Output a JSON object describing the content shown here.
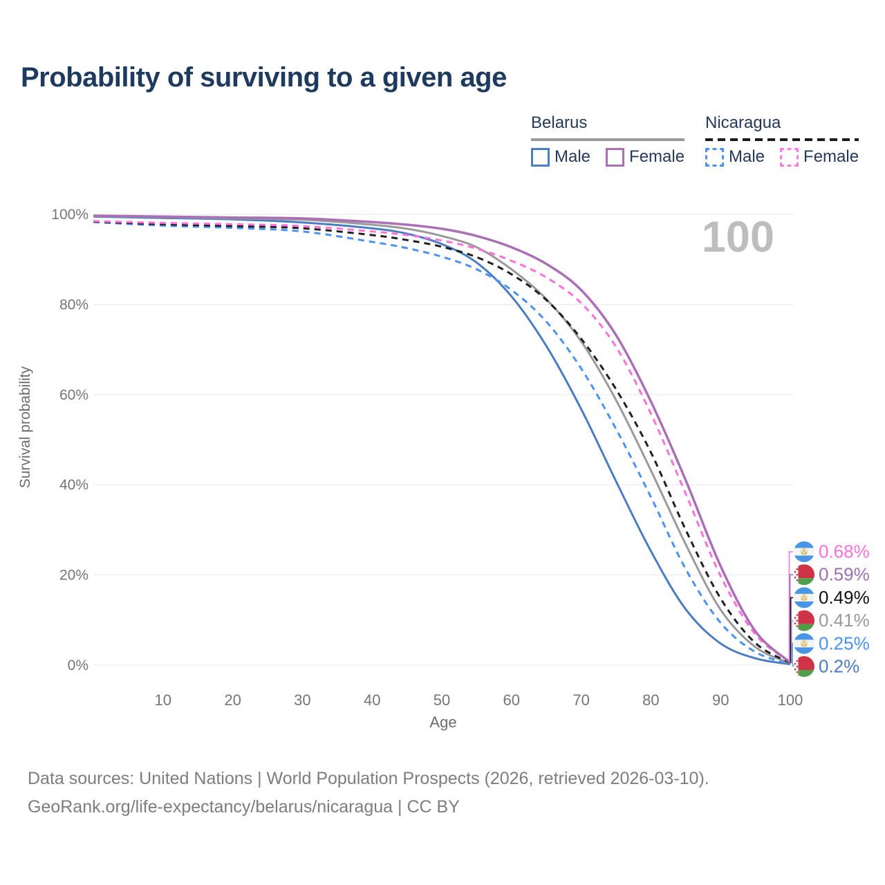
{
  "title": "Probability of surviving to a given age",
  "legend": {
    "belarus": {
      "label": "Belarus",
      "male_label": "Male",
      "female_label": "Female"
    },
    "nicaragua": {
      "label": "Nicaragua",
      "male_label": "Male",
      "female_label": "Female"
    }
  },
  "chart_data": {
    "type": "line",
    "title": "Probability of surviving to a given age",
    "xlabel": "Age",
    "ylabel": "Survival probability",
    "xlim": [
      0,
      100
    ],
    "ylim": [
      0,
      100
    ],
    "grid": "horizontal",
    "legend_position": "top-right",
    "watermark": "100",
    "x_tick_values": [
      10,
      20,
      30,
      40,
      50,
      60,
      70,
      80,
      90,
      100
    ],
    "x_tick_labels": [
      "10",
      "20",
      "30",
      "40",
      "50",
      "60",
      "70",
      "80",
      "90",
      "100"
    ],
    "y_tick_values": [
      0,
      20,
      40,
      60,
      80,
      100
    ],
    "y_tick_labels": [
      "0%",
      "20%",
      "40%",
      "60%",
      "80%",
      "100%"
    ],
    "ages": [
      0,
      10,
      20,
      30,
      40,
      45,
      50,
      55,
      60,
      65,
      70,
      75,
      80,
      85,
      90,
      95,
      100
    ],
    "series": [
      {
        "name": "Belarus male",
        "country": "belarus",
        "sex": "male",
        "style": "solid",
        "color": "#4a7cc3",
        "width": 3,
        "values": [
          99.5,
          99.2,
          98.9,
          98.2,
          96.9,
          95.7,
          93.4,
          89.3,
          81.8,
          70.8,
          56.8,
          40.8,
          25.3,
          12.4,
          4.8,
          1.5,
          0.2
        ]
      },
      {
        "name": "Nicaragua male",
        "country": "nicaragua",
        "sex": "male",
        "style": "dashed",
        "color": "#4991f5",
        "width": 3,
        "values": [
          98.3,
          97.5,
          97.0,
          96.2,
          93.9,
          92.5,
          90.6,
          87.8,
          83.2,
          76.2,
          65.8,
          52.4,
          37.3,
          21.3,
          9.4,
          2.9,
          0.25
        ]
      },
      {
        "name": "Belarus both sexes",
        "country": "belarus",
        "sex": "total",
        "style": "solid",
        "color": "#9a9a9a",
        "width": 3,
        "values": [
          99.6,
          99.4,
          99.1,
          98.8,
          97.7,
          96.8,
          95.2,
          92.7,
          87.8,
          81.2,
          71.8,
          58.8,
          43.2,
          26.8,
          12.3,
          4.0,
          0.41
        ]
      },
      {
        "name": "Nicaragua both sexes",
        "country": "nicaragua",
        "sex": "total",
        "style": "dashed",
        "color": "#1f1f1f",
        "width": 3,
        "values": [
          98.4,
          97.8,
          97.4,
          96.9,
          95.4,
          94.3,
          92.8,
          90.5,
          86.7,
          81.0,
          72.4,
          61.2,
          47.2,
          30.0,
          14.8,
          4.9,
          0.49
        ]
      },
      {
        "name": "Nicaragua female",
        "country": "nicaragua",
        "sex": "female",
        "style": "dashed",
        "color": "#ff70dd",
        "width": 3,
        "values": [
          98.5,
          98.1,
          97.8,
          97.4,
          96.2,
          95.4,
          94.2,
          92.4,
          89.7,
          86.0,
          80.3,
          70.6,
          55.8,
          38.0,
          19.8,
          6.8,
          0.68
        ]
      },
      {
        "name": "Belarus female",
        "country": "belarus",
        "sex": "female",
        "style": "solid",
        "color": "#aa6fb5",
        "width": 3.5,
        "values": [
          99.7,
          99.5,
          99.3,
          99.1,
          98.3,
          97.7,
          96.8,
          95.2,
          92.7,
          89.0,
          83.2,
          73.2,
          58.5,
          41.0,
          22.0,
          7.5,
          0.59
        ]
      }
    ],
    "end_labels": [
      {
        "text": "0.68%",
        "value": 0.68,
        "color": "#ff70dd",
        "flag": "nicaragua",
        "series": "Nicaragua female"
      },
      {
        "text": "0.59%",
        "value": 0.59,
        "color": "#a06fae",
        "flag": "belarus",
        "series": "Belarus female"
      },
      {
        "text": "0.49%",
        "value": 0.49,
        "color": "#111111",
        "flag": "nicaragua",
        "series": "Nicaragua both sexes"
      },
      {
        "text": "0.41%",
        "value": 0.41,
        "color": "#999999",
        "flag": "belarus",
        "series": "Belarus both sexes"
      },
      {
        "text": "0.25%",
        "value": 0.25,
        "color": "#4991f5",
        "flag": "nicaragua",
        "series": "Nicaragua male"
      },
      {
        "text": "0.2%",
        "value": 0.2,
        "color": "#4a7cc3",
        "flag": "belarus",
        "series": "Belarus male"
      }
    ]
  },
  "footer": {
    "line1": "Data sources: United Nations | World Population Prospects (2026, retrieved 2026-03-10).",
    "line2": "GeoRank.org/life-expectancy/belarus/nicaragua | CC BY"
  }
}
